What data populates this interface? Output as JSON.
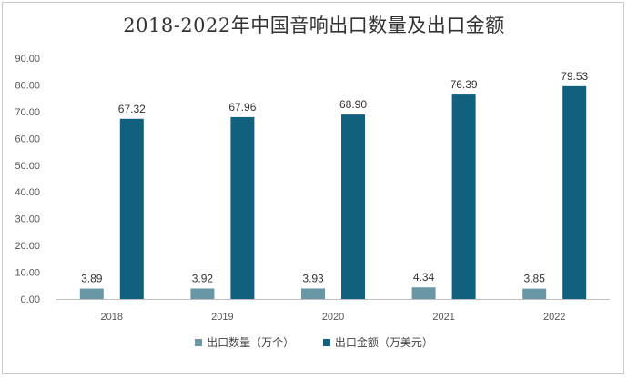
{
  "chart_data": {
    "type": "bar",
    "title": "2018-2022年中国音响出口数量及出口金额",
    "categories": [
      "2018",
      "2019",
      "2020",
      "2021",
      "2022"
    ],
    "series": [
      {
        "name": "出口数量（万个）",
        "color": "#6a97a6",
        "values": [
          3.89,
          3.92,
          3.93,
          4.34,
          3.85
        ],
        "labels": [
          "3.89",
          "3.92",
          "3.93",
          "4.34",
          "3.85"
        ]
      },
      {
        "name": "出口金额（万美元）",
        "color": "#11607d",
        "values": [
          67.32,
          67.96,
          68.9,
          76.39,
          79.53
        ],
        "labels": [
          "67.32",
          "67.96",
          "68.90",
          "76.39",
          "79.53"
        ]
      }
    ],
    "yticks": [
      "0.00",
      "10.00",
      "20.00",
      "30.00",
      "40.00",
      "50.00",
      "60.00",
      "70.00",
      "80.00",
      "90.00"
    ],
    "ylim": [
      0,
      90
    ],
    "grid": false,
    "legend_position": "bottom"
  }
}
